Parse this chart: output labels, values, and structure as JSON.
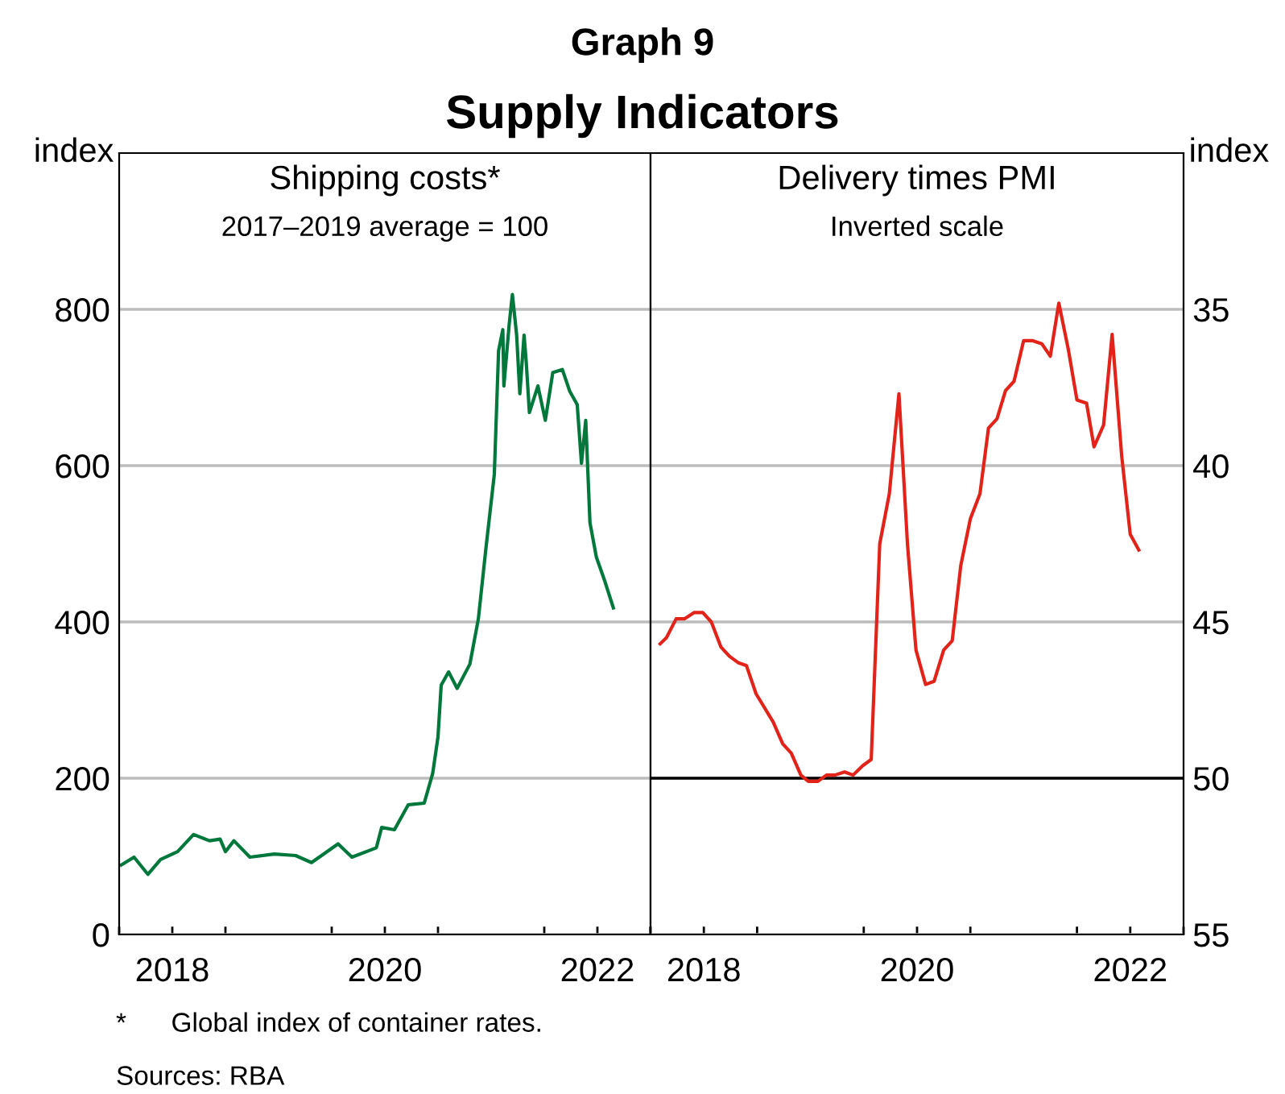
{
  "chart_data": [
    {
      "type": "other",
      "title": "Graph 9",
      "subtitle": "Supply Indicators",
      "annotations": [
        "*      Global index of container rates.",
        "Sources: RBA"
      ]
    },
    {
      "type": "line",
      "title": "Shipping costs*",
      "subtitle": "2017–2019 average = 100",
      "ylabel": "index",
      "x": [
        2018.02,
        2018.14,
        2018.27,
        2018.39,
        2018.55,
        2018.7,
        2018.85,
        2018.95,
        2019.0,
        2019.08,
        2019.23,
        2019.46,
        2019.66,
        2019.81,
        2020.06,
        2020.19,
        2020.42,
        2020.47,
        2020.59,
        2020.72,
        2020.87,
        2020.95,
        2021.0,
        2021.03,
        2021.1,
        2021.18,
        2021.3,
        2021.38,
        2021.45,
        2021.53,
        2021.57,
        2021.61,
        2021.62,
        2021.67,
        2021.7,
        2021.74,
        2021.77,
        2021.81,
        2021.83,
        2021.86,
        2021.94,
        2022.01,
        2022.08,
        2022.17,
        2022.24,
        2022.31,
        2022.35,
        2022.39,
        2022.43,
        2022.49,
        2022.57,
        2022.65
      ],
      "series": [
        {
          "color": "#00783c",
          "values": [
            89,
            99,
            77,
            96,
            106,
            128,
            120,
            122,
            106,
            120,
            99,
            103,
            101,
            92,
            116,
            99,
            111,
            137,
            134,
            166,
            168,
            206,
            253,
            319,
            336,
            315,
            346,
            404,
            493,
            589,
            747,
            774,
            702,
            781,
            819,
            767,
            692,
            767,
            733,
            668,
            702,
            658,
            719,
            723,
            695,
            678,
            603,
            658,
            527,
            483,
            452,
            418
          ]
        }
      ],
      "xlim": [
        2018,
        2023
      ],
      "xticks": [
        {
          "value": 2018,
          "label": null
        },
        {
          "value": 2018.5,
          "label": "2018"
        },
        {
          "value": 2019,
          "label": null
        },
        {
          "value": 2020,
          "label": null
        },
        {
          "value": 2020.5,
          "label": "2020"
        },
        {
          "value": 2021,
          "label": null
        },
        {
          "value": 2022,
          "label": null
        },
        {
          "value": 2022.5,
          "label": "2022"
        },
        {
          "value": 2023,
          "label": null
        }
      ],
      "ylim": [
        0,
        1000
      ],
      "yticks": [
        0,
        200,
        400,
        600,
        800
      ],
      "grid": "y",
      "line_style": "solid"
    },
    {
      "type": "line",
      "title": "Delivery times PMI",
      "subtitle": "Inverted scale",
      "y2label": "index",
      "x": [
        2018.09,
        2018.15,
        2018.24,
        2018.32,
        2018.41,
        2018.49,
        2018.57,
        2018.66,
        2018.74,
        2018.82,
        2018.9,
        2018.99,
        2019.15,
        2019.24,
        2019.32,
        2019.41,
        2019.48,
        2019.57,
        2019.65,
        2019.73,
        2019.82,
        2019.9,
        2019.99,
        2020.07,
        2020.15,
        2020.24,
        2020.33,
        2020.41,
        2020.49,
        2020.58,
        2020.66,
        2020.75,
        2020.83,
        2020.91,
        2021.0,
        2021.09,
        2021.17,
        2021.25,
        2021.33,
        2021.41,
        2021.5,
        2021.58,
        2021.67,
        2021.75,
        2021.83,
        2021.92,
        2022.0,
        2022.09,
        2022.16,
        2022.25,
        2022.33,
        2022.42,
        2022.5,
        2022.58
      ],
      "series": [
        {
          "color": "#e2231a",
          "axis": "y2",
          "values": [
            45.7,
            45.5,
            44.9,
            44.9,
            44.7,
            44.7,
            45.0,
            45.8,
            46.1,
            46.3,
            46.4,
            47.3,
            48.2,
            48.9,
            49.2,
            49.9,
            50.1,
            50.1,
            49.9,
            49.9,
            49.8,
            49.9,
            49.6,
            49.4,
            42.5,
            40.9,
            37.7,
            42.5,
            45.9,
            47.0,
            46.9,
            45.9,
            45.6,
            43.2,
            41.7,
            40.9,
            38.8,
            38.5,
            37.6,
            37.3,
            36.0,
            36.0,
            36.1,
            36.5,
            34.8,
            36.3,
            37.9,
            38.0,
            39.4,
            38.7,
            35.8,
            39.7,
            42.2,
            42.7
          ]
        }
      ],
      "xlim": [
        2018,
        2023
      ],
      "xticks": [
        {
          "value": 2018,
          "label": null
        },
        {
          "value": 2018.5,
          "label": "2018"
        },
        {
          "value": 2019,
          "label": null
        },
        {
          "value": 2020,
          "label": null
        },
        {
          "value": 2020.5,
          "label": "2020"
        },
        {
          "value": 2021,
          "label": null
        },
        {
          "value": 2022,
          "label": null
        },
        {
          "value": 2022.5,
          "label": "2022"
        },
        {
          "value": 2023,
          "label": null
        }
      ],
      "y2lim": [
        55,
        30
      ],
      "y2ticks": [
        35,
        40,
        45,
        50,
        55
      ],
      "grid": "y",
      "line_style": "solid",
      "ref_lines": [
        {
          "axis": "y2",
          "value": 50,
          "color": "#000000"
        }
      ]
    }
  ]
}
